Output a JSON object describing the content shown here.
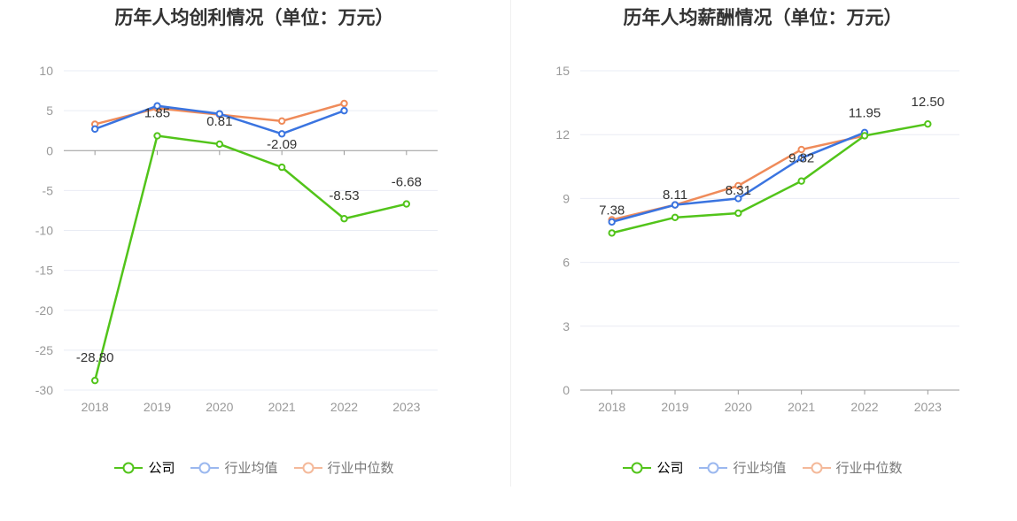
{
  "colors": {
    "company": "#52c41a",
    "avg": "#3a74e0",
    "median": "#ef8b5a",
    "avg_legend": "#9bb8ef",
    "median_legend": "#f4b99a",
    "grid": "#e9ecf4",
    "axis": "#999999",
    "label": "#999999",
    "datalabel": "#333333"
  },
  "legend": {
    "company": "公司",
    "avg": "行业均值",
    "median": "行业中位数"
  },
  "chart_data": [
    {
      "type": "line",
      "title": "历年人均创利情况（单位：万元）",
      "categories": [
        "2018",
        "2019",
        "2020",
        "2021",
        "2022",
        "2023"
      ],
      "y_ticks": [
        "10",
        "5",
        "0",
        "-5",
        "-10",
        "-15",
        "-20",
        "-25",
        "-30"
      ],
      "ylim": [
        -30,
        10
      ],
      "series": [
        {
          "name": "公司",
          "values": [
            -28.8,
            1.85,
            0.81,
            -2.09,
            -8.53,
            -6.68
          ],
          "labels": [
            "-28.80",
            "1.85",
            "0.81",
            "-2.09",
            "-8.53",
            "-6.68"
          ]
        },
        {
          "name": "行业均值",
          "values": [
            2.7,
            5.6,
            4.6,
            2.1,
            5.0,
            null
          ]
        },
        {
          "name": "行业中位数",
          "values": [
            3.3,
            5.3,
            4.5,
            3.7,
            5.9,
            null
          ]
        }
      ]
    },
    {
      "type": "line",
      "title": "历年人均薪酬情况（单位：万元）",
      "categories": [
        "2018",
        "2019",
        "2020",
        "2021",
        "2022",
        "2023"
      ],
      "y_ticks": [
        "15",
        "12",
        "9",
        "6",
        "3",
        "0"
      ],
      "ylim": [
        0,
        15
      ],
      "series": [
        {
          "name": "公司",
          "values": [
            7.38,
            8.11,
            8.31,
            9.82,
            11.95,
            12.5
          ],
          "labels": [
            "7.38",
            "8.11",
            "8.31",
            "9.82",
            "11.95",
            "12.50"
          ]
        },
        {
          "name": "行业均值",
          "values": [
            7.9,
            8.7,
            9.0,
            10.9,
            12.1,
            null
          ]
        },
        {
          "name": "行业中位数",
          "values": [
            8.0,
            8.7,
            9.6,
            11.3,
            11.95,
            null
          ]
        }
      ]
    }
  ]
}
